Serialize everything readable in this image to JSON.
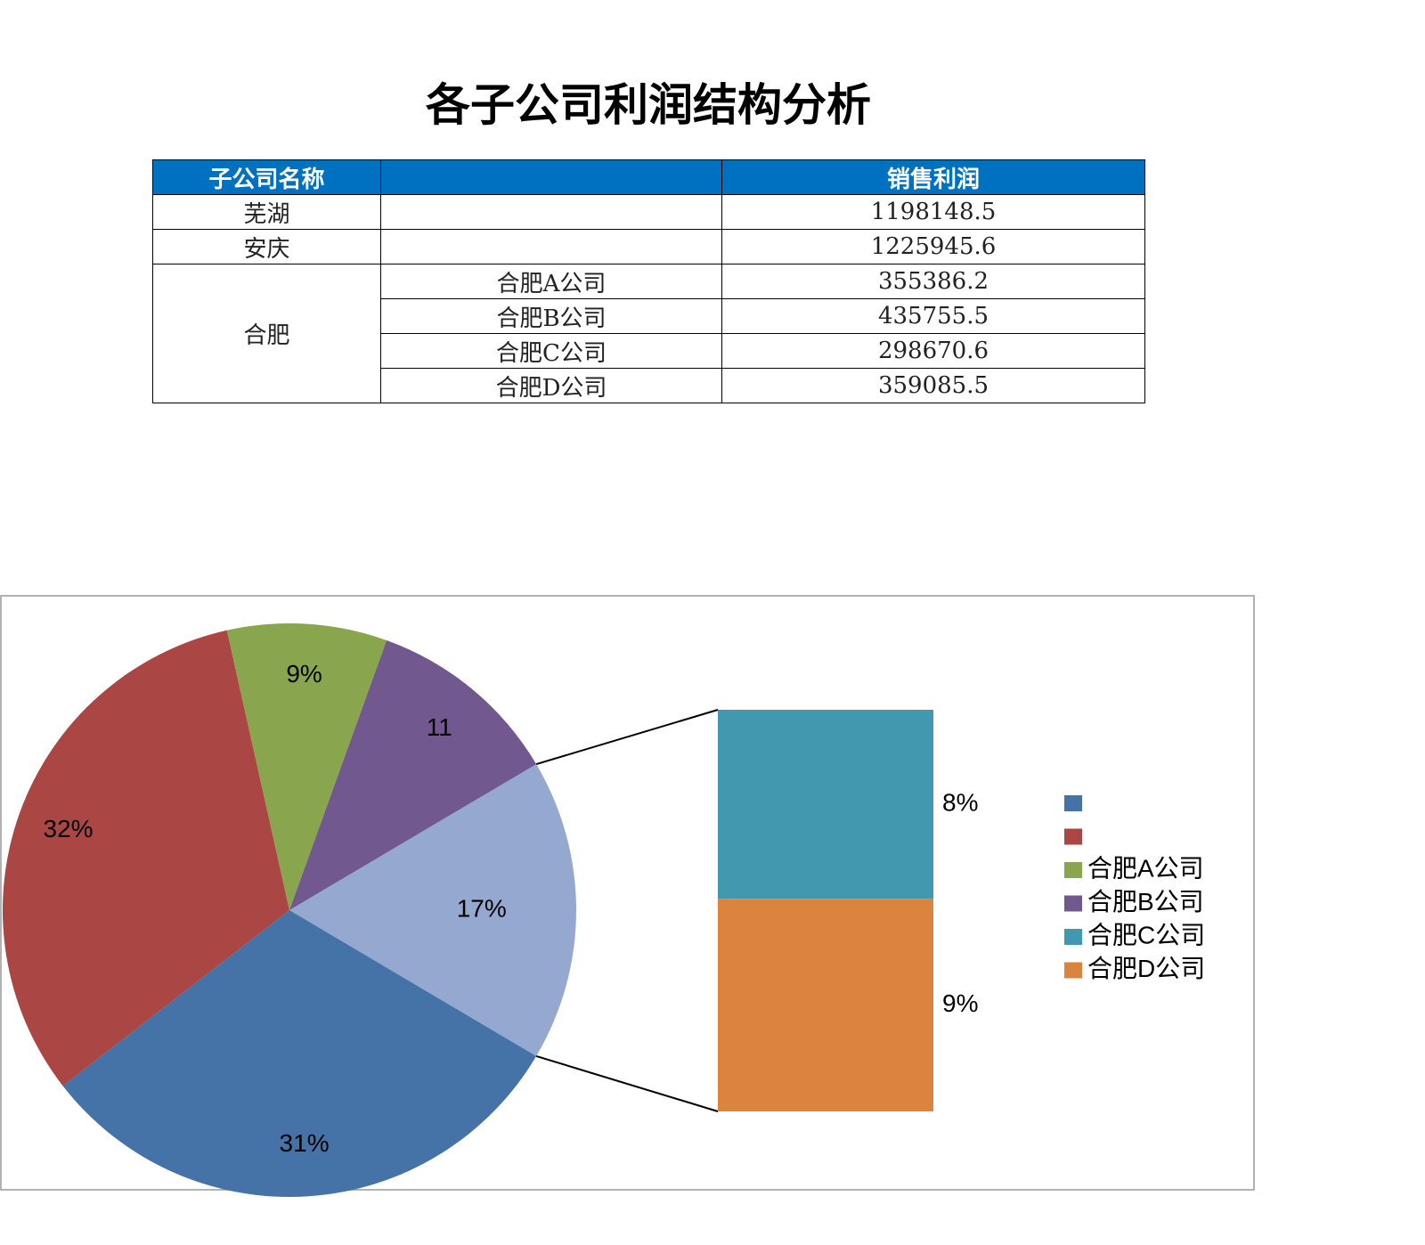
{
  "title": "各子公司利润结构分析",
  "table": {
    "header": {
      "name": "子公司名称",
      "profit": "销售利润"
    },
    "rows": [
      {
        "name": "芜湖",
        "profit": 1198148.5
      },
      {
        "name": "安庆",
        "profit": 1225945.6
      }
    ],
    "group": {
      "name": "合肥",
      "subs": [
        {
          "name": "合肥A公司",
          "profit": 355386.2
        },
        {
          "name": "合肥B公司",
          "profit": 435755.5
        },
        {
          "name": "合肥C公司",
          "profit": 298670.6
        },
        {
          "name": "合肥D公司",
          "profit": 359085.5
        }
      ]
    }
  },
  "chart_data": {
    "type": "pie",
    "categories": [
      null,
      null,
      "合肥A公司",
      "合肥B公司",
      "合肥C公司",
      "合肥D公司"
    ],
    "values": [
      31,
      32,
      9,
      11,
      8,
      9
    ],
    "value_labels": [
      "31%",
      "32%",
      "9%",
      "11",
      "8%",
      "9%"
    ],
    "colors": [
      "#4572a7",
      "#aa4643",
      "#89a54e",
      "#71588f",
      "#4198af",
      "#db843d"
    ],
    "split_last": 2,
    "other": {
      "value": 17,
      "value_label": "17%",
      "color": "#95a9d0"
    }
  }
}
